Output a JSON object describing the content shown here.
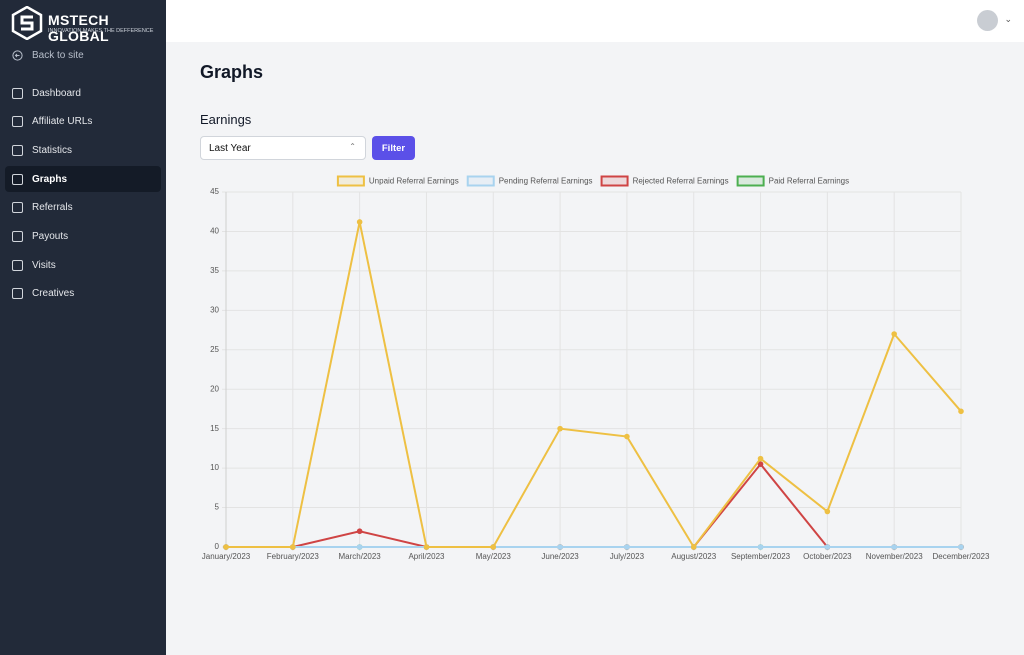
{
  "sidebar": {
    "brand": "MSTECH GLOBAL",
    "tagline": "INNOVATION MAKES THE DEFFERENCE",
    "back_link": "Back to site",
    "nav": [
      "Dashboard",
      "Affiliate URLs",
      "Statistics",
      "Graphs",
      "Referrals",
      "Payouts",
      "Visits",
      "Creatives"
    ]
  },
  "page": {
    "title": "Graphs",
    "section": "Earnings",
    "select": "Last Year",
    "button": "Filter"
  },
  "chart_data": {
    "type": "line",
    "categories": [
      "January/2023",
      "February/2023",
      "March/2023",
      "April/2023",
      "May/2023",
      "June/2023",
      "July/2023",
      "August/2023",
      "September/2023",
      "October/2023",
      "November/2023",
      "December/2023"
    ],
    "series": [
      {
        "name": "Unpaid Referral Earnings",
        "color": "#eec043",
        "values": [
          0,
          0,
          41.2,
          0,
          0,
          15,
          14,
          0,
          11.2,
          4.5,
          27,
          17.2
        ]
      },
      {
        "name": "Pending Referral Earnings",
        "color": "#a8d3ef",
        "values": [
          0,
          0,
          0,
          0,
          0,
          0,
          0,
          0,
          0,
          0,
          0,
          0
        ]
      },
      {
        "name": "Rejected Referral Earnings",
        "color": "#cf4444",
        "values": [
          0,
          0,
          2,
          0,
          0,
          0,
          0,
          0,
          10.5,
          0,
          0,
          0
        ]
      },
      {
        "name": "Paid Referral Earnings",
        "color": "#4caf50",
        "values": [
          0,
          0,
          0,
          0,
          0,
          0,
          0,
          0,
          0,
          0,
          0,
          0
        ]
      }
    ],
    "ylim": [
      0,
      45
    ],
    "yticks": [
      0,
      5,
      10,
      15,
      20,
      25,
      30,
      35,
      40,
      45
    ],
    "grid": true,
    "legend": "top"
  }
}
